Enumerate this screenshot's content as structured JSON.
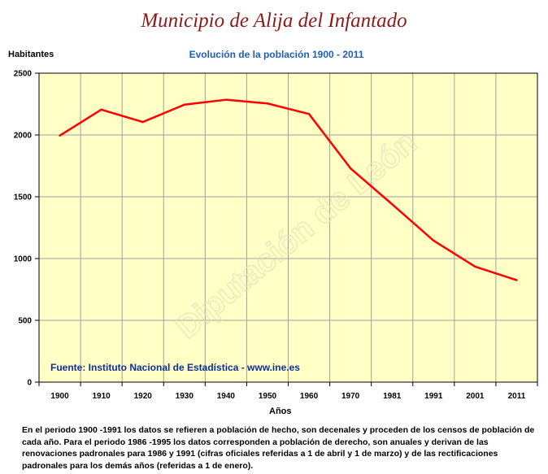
{
  "page": {
    "title": "Municipio de Alija del Infantado",
    "source": "Fuente: Instituto Nacional de Estadística - www.ine.es",
    "watermark": "Diputación de León",
    "footnote": "En el periodo 1900 -1991 los datos se refieren a población de hecho, son decenales y proceden de los censos de población de cada año. Para el periodo 1986 -1995 los datos corresponden a población de derecho, son anuales y derivan de las renovaciones padronales para 1986 y 1991 (cifras oficiales referidas a 1 de abril y 1 de marzo) y de las rectificaciones padronales para los demás años (referidas a 1 de enero)."
  },
  "chart_data": {
    "type": "line",
    "title": "Evolución de la población 1900 - 2011",
    "xlabel": "Años",
    "ylabel": "Habitantes",
    "ylim": [
      0,
      2500
    ],
    "yticks": [
      0,
      500,
      1000,
      1500,
      2000,
      2500
    ],
    "grid": true,
    "categories": [
      "1900",
      "1910",
      "1920",
      "1930",
      "1940",
      "1950",
      "1960",
      "1970",
      "1981",
      "1991",
      "2001",
      "2011"
    ],
    "series": [
      {
        "values": [
          1995,
          2205,
          2105,
          2245,
          2285,
          2255,
          2170,
          1730,
          1440,
          1145,
          935,
          825
        ]
      }
    ],
    "colors": {
      "plot_background": "#ffffc6",
      "line": "#ff0000",
      "grid": "#a0a0a0"
    }
  }
}
